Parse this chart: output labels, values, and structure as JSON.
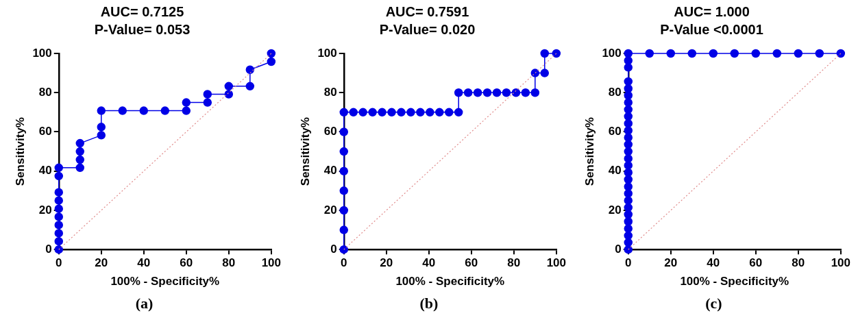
{
  "chart_data": [
    {
      "type": "line",
      "title": "AUC= 0.7125",
      "subtitle": "P-Value= 0.053",
      "xlabel": "100% - Specificity%",
      "ylabel": "Sensitivity%",
      "xlim": [
        0,
        100
      ],
      "ylim": [
        0,
        100
      ],
      "xticks": [
        0,
        20,
        40,
        60,
        80,
        100
      ],
      "yticks": [
        0,
        20,
        40,
        60,
        80,
        100
      ],
      "grid": false,
      "legend": false,
      "annotations": [
        "(a)"
      ],
      "series": [
        {
          "color": "#e08a8a",
          "marker": "none",
          "line_style": "dotted",
          "x": [
            0,
            100
          ],
          "values": [
            0,
            100
          ]
        },
        {
          "color": "#0000e6",
          "marker": "circle",
          "line_style": "solid",
          "x": [
            0,
            0,
            0,
            0,
            0,
            0,
            0,
            0,
            0,
            0,
            10,
            10,
            10,
            10,
            20,
            20,
            20,
            30,
            40,
            50,
            60,
            60,
            70,
            70,
            80,
            80,
            90,
            90,
            100,
            100
          ],
          "values": [
            0,
            4.2,
            8.3,
            12.5,
            16.7,
            20.8,
            25,
            29.2,
            37.5,
            41.7,
            41.7,
            45.8,
            50,
            54.2,
            58.3,
            62.5,
            70.8,
            70.8,
            70.8,
            70.8,
            70.8,
            75,
            75,
            79.2,
            79.2,
            83.3,
            83.3,
            91.7,
            95.8,
            100
          ]
        }
      ]
    },
    {
      "type": "line",
      "title": "AUC= 0.7591",
      "subtitle": "P-Value= 0.020",
      "xlabel": "100% - Specificity%",
      "ylabel": "Sensitivity%",
      "xlim": [
        0,
        100
      ],
      "ylim": [
        0,
        100
      ],
      "xticks": [
        0,
        20,
        40,
        60,
        80,
        100
      ],
      "yticks": [
        0,
        20,
        40,
        60,
        80,
        100
      ],
      "grid": false,
      "legend": false,
      "annotations": [
        "(b)"
      ],
      "series": [
        {
          "color": "#e08a8a",
          "marker": "none",
          "line_style": "dotted",
          "x": [
            0,
            100
          ],
          "values": [
            0,
            100
          ]
        },
        {
          "color": "#0000e6",
          "marker": "circle",
          "line_style": "solid",
          "x": [
            0,
            0,
            0,
            0,
            0,
            0,
            0,
            0,
            4.5,
            9,
            13.5,
            18,
            22.5,
            27,
            31.5,
            36,
            40.5,
            45,
            49.5,
            54,
            54,
            58.5,
            63,
            67.5,
            72,
            76.5,
            81,
            85.5,
            90,
            90,
            94.5,
            94.5,
            100
          ],
          "values": [
            0,
            10,
            20,
            30,
            40,
            50,
            60,
            70,
            70,
            70,
            70,
            70,
            70,
            70,
            70,
            70,
            70,
            70,
            70,
            70,
            80,
            80,
            80,
            80,
            80,
            80,
            80,
            80,
            80,
            90,
            90,
            100,
            100
          ]
        }
      ]
    },
    {
      "type": "line",
      "title": "AUC= 1.000",
      "subtitle": "P-Value <0.0001",
      "xlabel": "100% - Specificity%",
      "ylabel": "Sensitivity%",
      "xlim": [
        0,
        100
      ],
      "ylim": [
        0,
        100
      ],
      "xticks": [
        0,
        20,
        40,
        60,
        80,
        100
      ],
      "yticks": [
        0,
        20,
        40,
        60,
        80,
        100
      ],
      "grid": false,
      "legend": false,
      "annotations": [
        "(c)"
      ],
      "series": [
        {
          "color": "#e08a8a",
          "marker": "none",
          "line_style": "dotted",
          "x": [
            0,
            100
          ],
          "values": [
            0,
            100
          ]
        },
        {
          "color": "#0000e6",
          "marker": "circle",
          "line_style": "solid",
          "x": [
            0,
            0,
            0,
            0,
            0,
            0,
            0,
            0,
            0,
            0,
            0,
            0,
            0,
            0,
            0,
            0,
            0,
            0,
            0,
            0,
            0,
            0,
            0,
            0,
            0,
            0,
            0,
            0,
            10,
            20,
            30,
            40,
            50,
            60,
            70,
            80,
            90,
            100
          ],
          "values": [
            0,
            3.6,
            7.1,
            10.7,
            14.3,
            17.9,
            21.4,
            25,
            28.6,
            32.1,
            35.7,
            39.3,
            42.9,
            46.4,
            50,
            53.6,
            57.1,
            60.7,
            64.3,
            67.9,
            71.4,
            75,
            78.6,
            82.1,
            85.7,
            92.9,
            96.4,
            100,
            100,
            100,
            100,
            100,
            100,
            100,
            100,
            100,
            100,
            100
          ]
        }
      ]
    }
  ]
}
